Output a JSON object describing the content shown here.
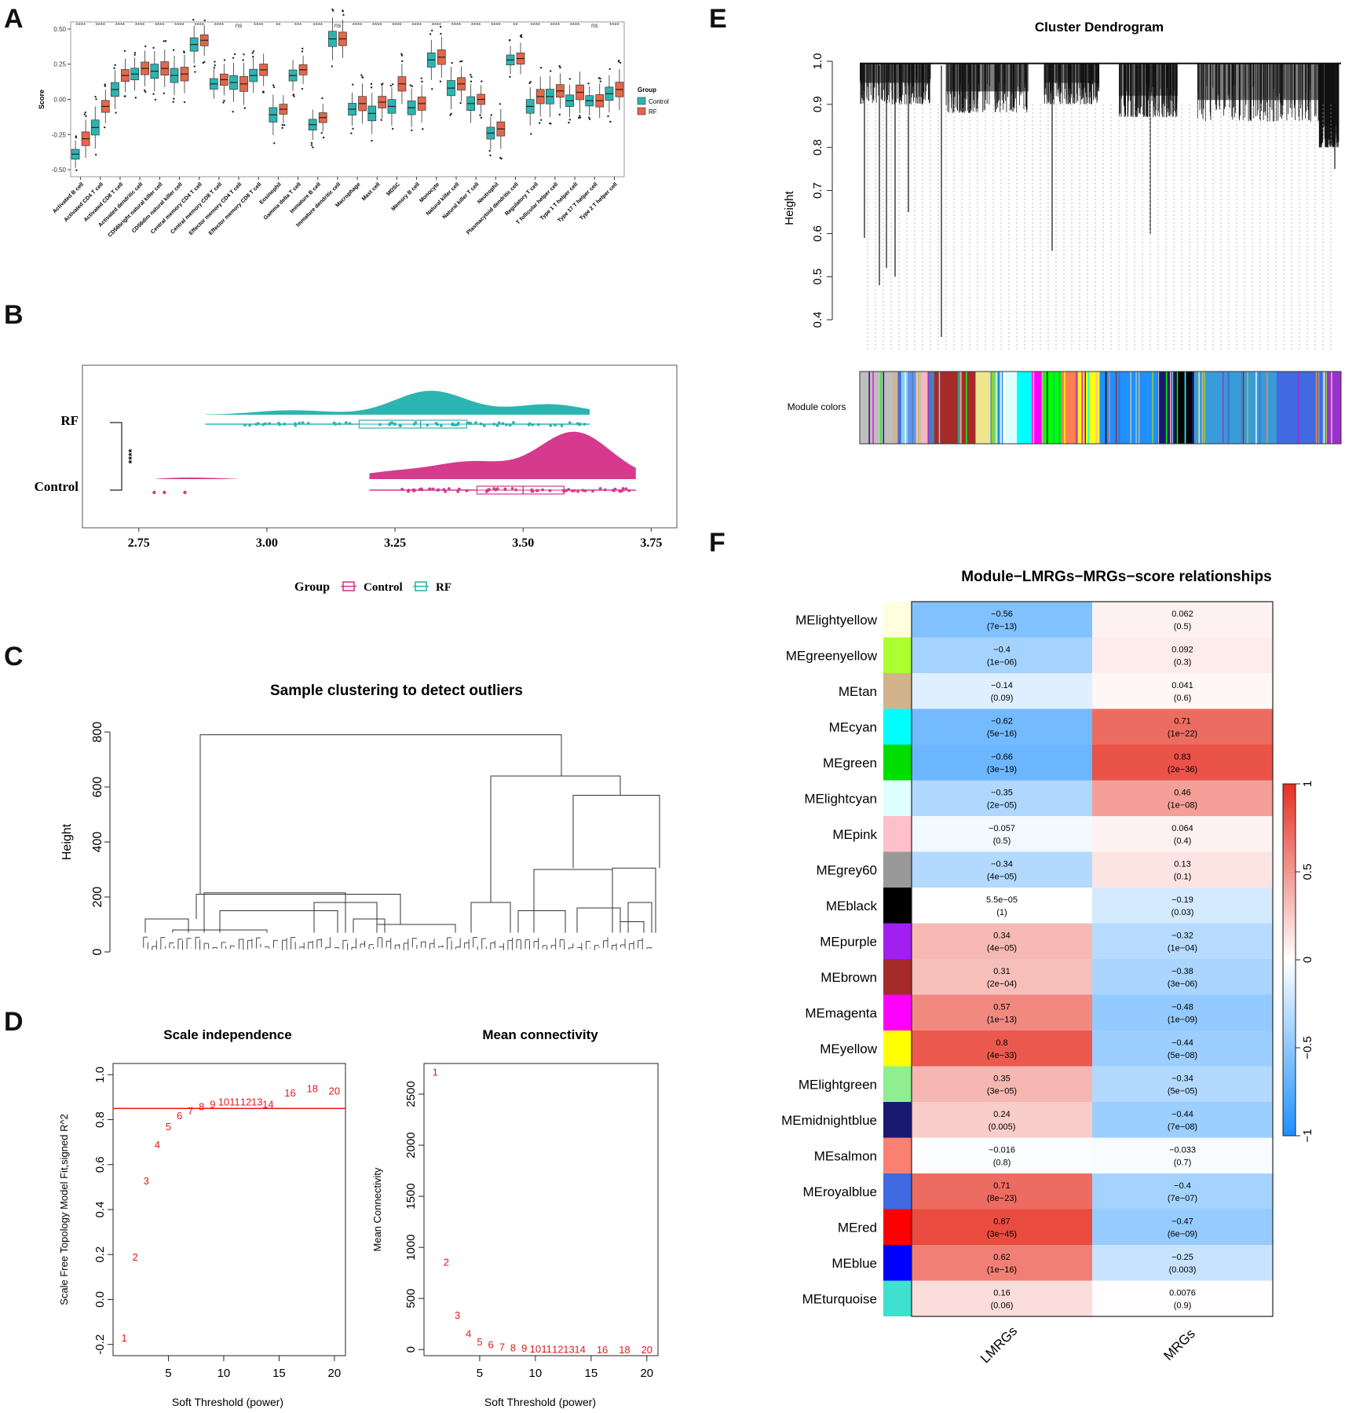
{
  "panels": {
    "a": "A",
    "b": "B",
    "c": "C",
    "d": "D",
    "e": "E",
    "f": "F"
  },
  "chart_data": [
    {
      "id": "A",
      "type": "boxplot",
      "ylabel": "Score",
      "yticks": [
        -0.5,
        -0.25,
        0.0,
        0.25,
        0.5
      ],
      "ylim": [
        -0.55,
        0.55
      ],
      "legend": {
        "title": "Group",
        "entries": [
          "Control",
          "RF"
        ],
        "colors": {
          "Control": "#2cb5b0",
          "RF": "#e4674a"
        }
      },
      "categories": [
        "Activated B cell",
        "Activated CD4 T cell",
        "Activated CD8 T cell",
        "Activated dendritic cell",
        "CD56bright natural killer cell",
        "CD56dim natural killer cell",
        "Central memory CD4 T cell",
        "Central memory CD8 T cell",
        "Effector memory CD4 T cell",
        "Effector memory CD8 T cell",
        "Eosinophil",
        "Gamma delta T cell",
        "Immature  B cell",
        "Immature dendritic cell",
        "Macrophage",
        "Mast cell",
        "MDSC",
        "Memory B cell",
        "Monocyte",
        "Natural killer cell",
        "Natural killer T cell",
        "Neutrophil",
        "Plasmacytoid dendritic cell",
        "Regulatory T cell",
        "T follicular helper cell",
        "Type 1 T helper cell",
        "Type 17 T helper cell",
        "Type 2 T helper cell"
      ],
      "control_medians": [
        -0.39,
        -0.2,
        0.07,
        0.18,
        0.2,
        0.17,
        0.39,
        0.11,
        0.12,
        0.17,
        -0.11,
        0.17,
        -0.18,
        0.43,
        -0.07,
        -0.1,
        -0.05,
        -0.06,
        0.28,
        0.08,
        -0.03,
        -0.24,
        0.28,
        -0.05,
        0.02,
        -0.01,
        -0.01,
        0.04
      ],
      "rf_medians": [
        -0.28,
        -0.05,
        0.17,
        0.22,
        0.22,
        0.18,
        0.42,
        0.14,
        0.11,
        0.21,
        -0.07,
        0.21,
        -0.13,
        0.43,
        -0.03,
        -0.02,
        0.11,
        -0.03,
        0.3,
        0.11,
        0.0,
        -0.21,
        0.29,
        0.02,
        0.06,
        0.05,
        -0.01,
        0.07
      ],
      "significance": [
        "****",
        "****",
        "****",
        "****",
        "****",
        "****",
        "****",
        "****",
        "ns",
        "****",
        "**",
        "***",
        "****",
        "ns",
        "****",
        "****",
        "****",
        "****",
        "****",
        "****",
        "****",
        "****",
        "**",
        "****",
        "****",
        "****",
        "ns",
        "****"
      ]
    },
    {
      "id": "B",
      "type": "raincloud",
      "groups": [
        "RF",
        "Control"
      ],
      "xticks": [
        2.75,
        3.0,
        3.25,
        3.5,
        3.75
      ],
      "xticklabels": [
        "2.75",
        "3.00",
        "3.25",
        "3.50",
        "3.75"
      ],
      "xlim": [
        2.64,
        3.8
      ],
      "significance": "****",
      "legend": {
        "title": "Group",
        "entries": [
          "Control",
          "RF"
        ],
        "colors": {
          "Control": "#d63a8c",
          "RF": "#2cb5b0"
        }
      },
      "rf": {
        "min": 2.88,
        "q1": 3.18,
        "median": 3.3,
        "q3": 3.39,
        "max": 3.63
      },
      "control": {
        "min": 3.2,
        "q1": 3.41,
        "median": 3.5,
        "q3": 3.58,
        "max": 3.72,
        "outliers": [
          2.78,
          2.8,
          2.84
        ]
      }
    },
    {
      "id": "C",
      "type": "dendrogram",
      "title": "Sample clustering to detect outliers",
      "ylabel": "Height",
      "yticks": [
        0,
        200,
        400,
        600,
        800
      ],
      "root_height": 790,
      "left_cluster_height": 210,
      "right_cluster_height": 640,
      "right_subcluster_height": 570,
      "right_low_heights": [
        300,
        305,
        210
      ]
    },
    {
      "id": "D1",
      "type": "scatter",
      "title": "Scale independence",
      "xlabel": "Soft Threshold (power)",
      "ylabel": "Scale Free Topology Model Fit,signed R^2",
      "xticks": [
        5,
        10,
        15,
        20
      ],
      "yticks": [
        -0.2,
        0.0,
        0.2,
        0.4,
        0.6,
        0.8,
        1.0
      ],
      "xlim": [
        0,
        21
      ],
      "ylim": [
        -0.25,
        1.05
      ],
      "threshold_line": 0.85,
      "x": [
        1,
        2,
        3,
        4,
        5,
        6,
        7,
        8,
        9,
        10,
        11,
        12,
        13,
        14,
        16,
        18,
        20
      ],
      "y": [
        -0.17,
        0.19,
        0.53,
        0.69,
        0.77,
        0.82,
        0.84,
        0.86,
        0.87,
        0.88,
        0.88,
        0.88,
        0.88,
        0.87,
        0.92,
        0.94,
        0.93
      ],
      "labels": [
        "1",
        "2",
        "3",
        "4",
        "5",
        "6",
        "7",
        "8",
        "9",
        "10",
        "11",
        "12",
        "13",
        "14",
        "16",
        "18",
        "20"
      ]
    },
    {
      "id": "D2",
      "type": "scatter",
      "title": "Mean connectivity",
      "xlabel": "Soft Threshold (power)",
      "ylabel": "Mean Connectivity",
      "xticks": [
        5,
        10,
        15,
        20
      ],
      "yticks": [
        0,
        500,
        1000,
        1500,
        2000,
        2500
      ],
      "xlim": [
        0,
        21
      ],
      "ylim": [
        -60,
        2800
      ],
      "x": [
        1,
        2,
        3,
        4,
        5,
        6,
        7,
        8,
        9,
        10,
        11,
        12,
        13,
        14,
        16,
        18,
        20
      ],
      "y": [
        2720,
        860,
        340,
        160,
        80,
        50,
        30,
        20,
        15,
        10,
        8,
        6,
        5,
        4,
        3,
        2,
        1
      ],
      "labels": [
        "1",
        "2",
        "3",
        "4",
        "5",
        "6",
        "7",
        "8",
        "9",
        "10",
        "11",
        "12",
        "13",
        "14",
        "16",
        "18",
        "20"
      ]
    },
    {
      "id": "E",
      "type": "dendrogram",
      "title": "Cluster Dendrogram",
      "ylabel": "Height",
      "yticks": [
        0.4,
        0.5,
        0.6,
        0.7,
        0.8,
        0.9,
        1.0
      ],
      "ylim": [
        0.34,
        1.0
      ],
      "color_row_label": "Module colors",
      "module_color_bands": [
        "#bebebe",
        "#d2b48c",
        "#4169e1",
        "#87ceeb",
        "#6495ed",
        "#ffb6c1",
        "#4682b4",
        "#a52a2a",
        "#f0e68c",
        "#9acd32",
        "#ffffe0",
        "#e0ffff",
        "#00ffff",
        "#ff00ff",
        "#00ff00",
        "#ff7f50",
        "#ffff00",
        "#1e90ff",
        "#191970",
        "#000000",
        "#3a9bd9",
        "#4169e1",
        "#9932cc"
      ]
    },
    {
      "id": "F",
      "type": "heatmap",
      "title": "Module−LMRGs−MRGs−score relationships",
      "columns": [
        "LMRGs",
        "MRGs"
      ],
      "colorbar_ticks": [
        "1",
        "0.5",
        "0",
        "−0.5",
        "−1"
      ],
      "rows": [
        {
          "name": "MElightyellow",
          "color": "#ffffe0",
          "lmrgs": "−0.56",
          "lmrgs_p": "(7e−13)",
          "lmrgs_v": -0.56,
          "mrgs": "0.062",
          "mrgs_p": "(0.5)",
          "mrgs_v": 0.062
        },
        {
          "name": "MEgreenyellow",
          "color": "#adff2f",
          "lmrgs": "−0.4",
          "lmrgs_p": "(1e−06)",
          "lmrgs_v": -0.4,
          "mrgs": "0.092",
          "mrgs_p": "(0.3)",
          "mrgs_v": 0.092
        },
        {
          "name": "MEtan",
          "color": "#d2b48c",
          "lmrgs": "−0.14",
          "lmrgs_p": "(0.09)",
          "lmrgs_v": -0.14,
          "mrgs": "0.041",
          "mrgs_p": "(0.6)",
          "mrgs_v": 0.041
        },
        {
          "name": "MEcyan",
          "color": "#00ffff",
          "lmrgs": "−0.62",
          "lmrgs_p": "(5e−16)",
          "lmrgs_v": -0.62,
          "mrgs": "0.71",
          "mrgs_p": "(1e−22)",
          "mrgs_v": 0.71
        },
        {
          "name": "MEgreen",
          "color": "#00dd00",
          "lmrgs": "−0.66",
          "lmrgs_p": "(3e−19)",
          "lmrgs_v": -0.66,
          "mrgs": "0.83",
          "mrgs_p": "(2e−36)",
          "mrgs_v": 0.83
        },
        {
          "name": "MElightcyan",
          "color": "#e0ffff",
          "lmrgs": "−0.35",
          "lmrgs_p": "(2e−05)",
          "lmrgs_v": -0.35,
          "mrgs": "0.46",
          "mrgs_p": "(1e−08)",
          "mrgs_v": 0.46
        },
        {
          "name": "MEpink",
          "color": "#ffc0cb",
          "lmrgs": "−0.057",
          "lmrgs_p": "(0.5)",
          "lmrgs_v": -0.057,
          "mrgs": "0.064",
          "mrgs_p": "(0.4)",
          "mrgs_v": 0.064
        },
        {
          "name": "MEgrey60",
          "color": "#999999",
          "lmrgs": "−0.34",
          "lmrgs_p": "(4e−05)",
          "lmrgs_v": -0.34,
          "mrgs": "0.13",
          "mrgs_p": "(0.1)",
          "mrgs_v": 0.13
        },
        {
          "name": "MEblack",
          "color": "#000000",
          "lmrgs": "5.5e−05",
          "lmrgs_p": "(1)",
          "lmrgs_v": 0.0,
          "mrgs": "−0.19",
          "mrgs_p": "(0.03)",
          "mrgs_v": -0.19
        },
        {
          "name": "MEpurple",
          "color": "#a020f0",
          "lmrgs": "0.34",
          "lmrgs_p": "(4e−05)",
          "lmrgs_v": 0.34,
          "mrgs": "−0.32",
          "mrgs_p": "(1e−04)",
          "mrgs_v": -0.32
        },
        {
          "name": "MEbrown",
          "color": "#a52a2a",
          "lmrgs": "0.31",
          "lmrgs_p": "(2e−04)",
          "lmrgs_v": 0.31,
          "mrgs": "−0.38",
          "mrgs_p": "(3e−06)",
          "mrgs_v": -0.38
        },
        {
          "name": "MEmagenta",
          "color": "#ff00ff",
          "lmrgs": "0.57",
          "lmrgs_p": "(1e−13)",
          "lmrgs_v": 0.57,
          "mrgs": "−0.48",
          "mrgs_p": "(1e−09)",
          "mrgs_v": -0.48
        },
        {
          "name": "MEyellow",
          "color": "#ffff00",
          "lmrgs": "0.8",
          "lmrgs_p": "(4e−33)",
          "lmrgs_v": 0.8,
          "mrgs": "−0.44",
          "mrgs_p": "(5e−08)",
          "mrgs_v": -0.44
        },
        {
          "name": "MElightgreen",
          "color": "#90ee90",
          "lmrgs": "0.35",
          "lmrgs_p": "(3e−05)",
          "lmrgs_v": 0.35,
          "mrgs": "−0.34",
          "mrgs_p": "(5e−05)",
          "mrgs_v": -0.34
        },
        {
          "name": "MEmidnightblue",
          "color": "#191970",
          "lmrgs": "0.24",
          "lmrgs_p": "(0.005)",
          "lmrgs_v": 0.24,
          "mrgs": "−0.44",
          "mrgs_p": "(7e−08)",
          "mrgs_v": -0.44
        },
        {
          "name": "MEsalmon",
          "color": "#fa8072",
          "lmrgs": "−0.016",
          "lmrgs_p": "(0.8)",
          "lmrgs_v": -0.016,
          "mrgs": "−0.033",
          "mrgs_p": "(0.7)",
          "mrgs_v": -0.033
        },
        {
          "name": "MEroyalblue",
          "color": "#4169e1",
          "lmrgs": "0.71",
          "lmrgs_p": "(8e−23)",
          "lmrgs_v": 0.71,
          "mrgs": "−0.4",
          "mrgs_p": "(7e−07)",
          "mrgs_v": -0.4
        },
        {
          "name": "MEred",
          "color": "#ff0000",
          "lmrgs": "0.87",
          "lmrgs_p": "(3e−45)",
          "lmrgs_v": 0.87,
          "mrgs": "−0.47",
          "mrgs_p": "(6e−09)",
          "mrgs_v": -0.47
        },
        {
          "name": "MEblue",
          "color": "#0000ff",
          "lmrgs": "0.62",
          "lmrgs_p": "(1e−16)",
          "lmrgs_v": 0.62,
          "mrgs": "−0.25",
          "mrgs_p": "(0.003)",
          "mrgs_v": -0.25
        },
        {
          "name": "MEturquoise",
          "color": "#40e0d0",
          "lmrgs": "0.16",
          "lmrgs_p": "(0.06)",
          "lmrgs_v": 0.16,
          "mrgs": "0.0076",
          "mrgs_p": "(0.9)",
          "mrgs_v": 0.0076
        }
      ]
    }
  ]
}
